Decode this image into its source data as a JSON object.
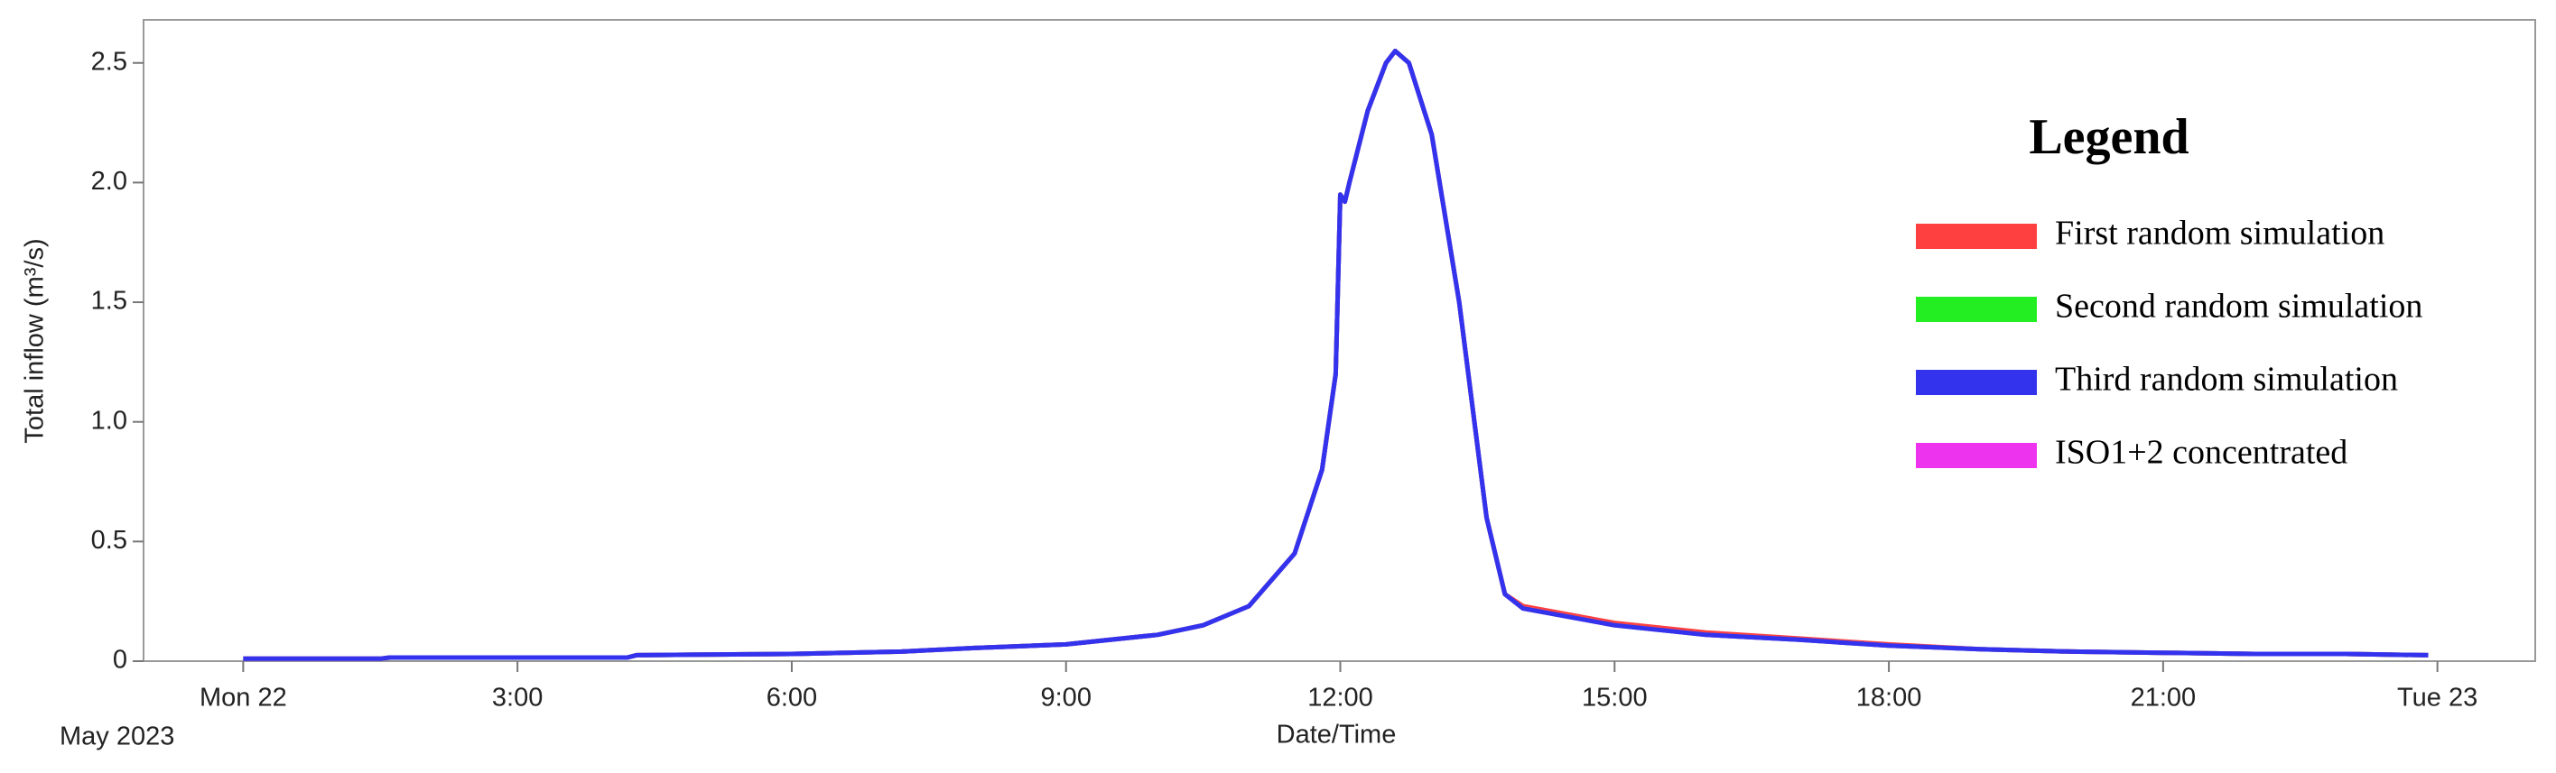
{
  "chart_data": {
    "type": "line",
    "x_label": "Date/Time",
    "y_label": "Total inflow (m³/s)",
    "date_note": "May 2023",
    "legend_title": "Legend",
    "x": [
      0,
      1.5,
      1.6,
      4.2,
      4.3,
      6,
      7.2,
      8,
      9,
      10,
      10.5,
      11,
      11.5,
      11.8,
      11.95,
      12.0,
      12.05,
      12.1,
      12.3,
      12.5,
      12.6,
      12.75,
      13.0,
      13.3,
      13.6,
      13.8,
      14,
      15,
      16,
      17,
      18,
      19,
      20,
      21,
      22,
      23,
      23.9
    ],
    "series": [
      {
        "name": "First random simulation",
        "color": "#ff4040",
        "values": [
          0.01,
          0.01,
          0.015,
          0.015,
          0.025,
          0.03,
          0.04,
          0.055,
          0.07,
          0.11,
          0.15,
          0.23,
          0.45,
          0.8,
          1.2,
          1.95,
          1.92,
          2.0,
          2.3,
          2.5,
          2.55,
          2.5,
          2.2,
          1.5,
          0.6,
          0.28,
          0.23,
          0.16,
          0.12,
          0.095,
          0.07,
          0.05,
          0.04,
          0.035,
          0.03,
          0.03,
          0.025
        ]
      },
      {
        "name": "Second random simulation",
        "color": "#22ee22",
        "values": [
          0.01,
          0.01,
          0.015,
          0.015,
          0.025,
          0.03,
          0.04,
          0.055,
          0.07,
          0.11,
          0.15,
          0.23,
          0.45,
          0.8,
          1.2,
          1.95,
          1.92,
          2.0,
          2.3,
          2.5,
          2.55,
          2.5,
          2.2,
          1.5,
          0.6,
          0.28,
          0.22,
          0.15,
          0.11,
          0.09,
          0.065,
          0.05,
          0.04,
          0.035,
          0.03,
          0.03,
          0.025
        ]
      },
      {
        "name": "Third random simulation",
        "color": "#3333ee",
        "values": [
          0.01,
          0.01,
          0.015,
          0.015,
          0.025,
          0.03,
          0.04,
          0.055,
          0.07,
          0.11,
          0.15,
          0.23,
          0.45,
          0.8,
          1.2,
          1.95,
          1.92,
          2.0,
          2.3,
          2.5,
          2.55,
          2.5,
          2.2,
          1.5,
          0.6,
          0.28,
          0.22,
          0.15,
          0.11,
          0.09,
          0.065,
          0.05,
          0.04,
          0.035,
          0.03,
          0.03,
          0.025
        ]
      },
      {
        "name": "ISO1+2 concentrated",
        "color": "#ee33ee",
        "values": [
          0.01,
          0.01,
          0.015,
          0.015,
          0.025,
          0.03,
          0.04,
          0.055,
          0.07,
          0.11,
          0.15,
          0.23,
          0.45,
          0.8,
          1.2,
          1.95,
          1.92,
          2.0,
          2.3,
          2.5,
          2.55,
          2.5,
          2.2,
          1.5,
          0.6,
          0.28,
          0.22,
          0.15,
          0.11,
          0.09,
          0.065,
          0.05,
          0.04,
          0.035,
          0.03,
          0.03,
          0.025
        ]
      }
    ],
    "draw_order": [
      0,
      1,
      3,
      2
    ],
    "xlim": [
      -1.09,
      25.07
    ],
    "ylim": [
      0,
      2.68
    ],
    "xticks": [
      {
        "value": 0,
        "label": "Mon 22"
      },
      {
        "value": 3,
        "label": "3:00"
      },
      {
        "value": 6,
        "label": "6:00"
      },
      {
        "value": 9,
        "label": "9:00"
      },
      {
        "value": 12,
        "label": "12:00"
      },
      {
        "value": 15,
        "label": "15:00"
      },
      {
        "value": 18,
        "label": "18:00"
      },
      {
        "value": 21,
        "label": "21:00"
      },
      {
        "value": 24,
        "label": "Tue 23"
      }
    ],
    "yticks": [
      0,
      0.5,
      {
        "value": 1,
        "label": "1.0"
      },
      1.5,
      {
        "value": 2,
        "label": "2.0"
      },
      2.5
    ],
    "grid": false
  }
}
